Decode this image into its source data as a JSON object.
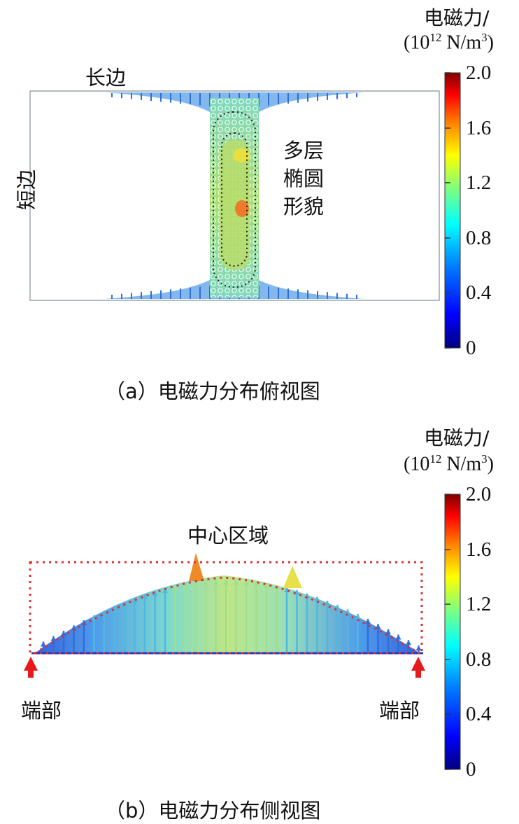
{
  "panel_a": {
    "colorbar": {
      "title_line1": "电磁力/",
      "title_line2_prefix": "(10",
      "title_line2_exp": "12",
      "title_line2_unit": " N/m",
      "title_line2_unit_exp": "3",
      "title_line2_close": ")",
      "ticks": [
        "2.0",
        "1.6",
        "1.2",
        "0.8",
        "0.4",
        "0"
      ]
    },
    "label_long_side": "长边",
    "label_short_side": "短边",
    "annotation_lines": [
      "多层",
      "椭圆",
      "形貌"
    ],
    "caption": "（a）电磁力分布俯视图"
  },
  "panel_b": {
    "colorbar": {
      "title_line1": "电磁力/",
      "title_line2_prefix": "(10",
      "title_line2_exp": "12",
      "title_line2_unit": " N/m",
      "title_line2_unit_exp": "3",
      "title_line2_close": ")",
      "ticks": [
        "2.0",
        "1.6",
        "1.2",
        "0.8",
        "0.4",
        "0"
      ]
    },
    "label_center": "中心区域",
    "label_end_left": "端部",
    "label_end_right": "端部",
    "caption": "（b）电磁力分布侧视图"
  },
  "colors": {
    "colormap": [
      "#00007f",
      "#0000ff",
      "#007fff",
      "#00ffff",
      "#7fff7f",
      "#ffff00",
      "#ff7f00",
      "#ff0000",
      "#7f0000"
    ],
    "outline_dotted": "#e03030",
    "end_arrow": "#e8191c",
    "frame": "#9aa5ad"
  }
}
